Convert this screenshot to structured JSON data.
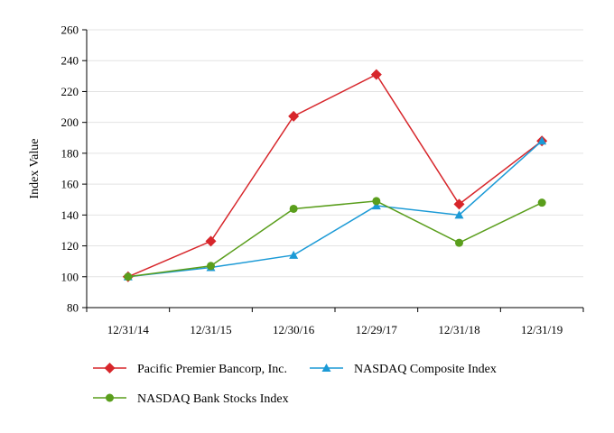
{
  "chart_data": {
    "type": "line",
    "title": "",
    "xlabel": "",
    "ylabel": "Index Value",
    "ylim": [
      80,
      260
    ],
    "yticks": [
      80,
      100,
      120,
      140,
      160,
      180,
      200,
      220,
      240,
      260
    ],
    "grid": true,
    "legend_position": "bottom",
    "categories": [
      "12/31/14",
      "12/31/15",
      "12/30/16",
      "12/29/17",
      "12/31/18",
      "12/31/19"
    ],
    "series": [
      {
        "name": "Pacific Premier Bancorp, Inc.",
        "values": [
          100,
          123,
          204,
          231,
          147,
          188
        ],
        "color": "#d7262b",
        "marker": "diamond"
      },
      {
        "name": "NASDAQ Composite Index",
        "values": [
          100,
          106,
          114,
          146,
          140,
          188
        ],
        "color": "#1b9ad6",
        "marker": "triangle"
      },
      {
        "name": "NASDAQ Bank Stocks Index",
        "values": [
          100,
          107,
          144,
          149,
          122,
          148
        ],
        "color": "#5a9e1c",
        "marker": "circle"
      }
    ]
  }
}
